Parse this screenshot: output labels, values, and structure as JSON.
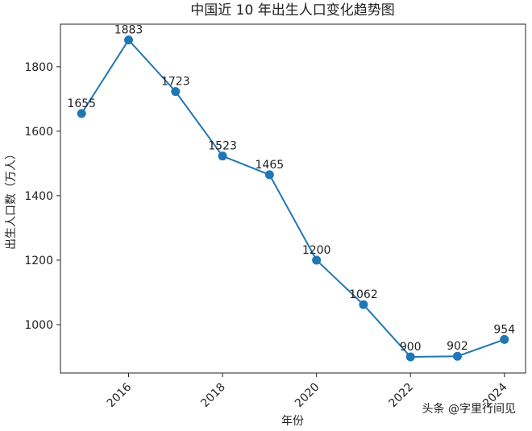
{
  "chart_data": {
    "type": "line",
    "title": "中国近 10 年出生人口变化趋势图",
    "x_label": "年份",
    "y_label": "出生人口数（万人）",
    "x": [
      2015,
      2016,
      2017,
      2018,
      2019,
      2020,
      2021,
      2022,
      2023,
      2024
    ],
    "values": [
      1655,
      1883,
      1723,
      1523,
      1465,
      1200,
      1062,
      900,
      902,
      954
    ],
    "color": "#1f77b4",
    "xlim": [
      2014.55,
      2024.45
    ],
    "xticks": [
      2016,
      2018,
      2020,
      2022,
      2024
    ],
    "ylim": [
      850,
      1932
    ],
    "yticks": [
      1000,
      1200,
      1400,
      1600,
      1800
    ],
    "grid": false,
    "watermark": "头条 @字里行间见"
  }
}
